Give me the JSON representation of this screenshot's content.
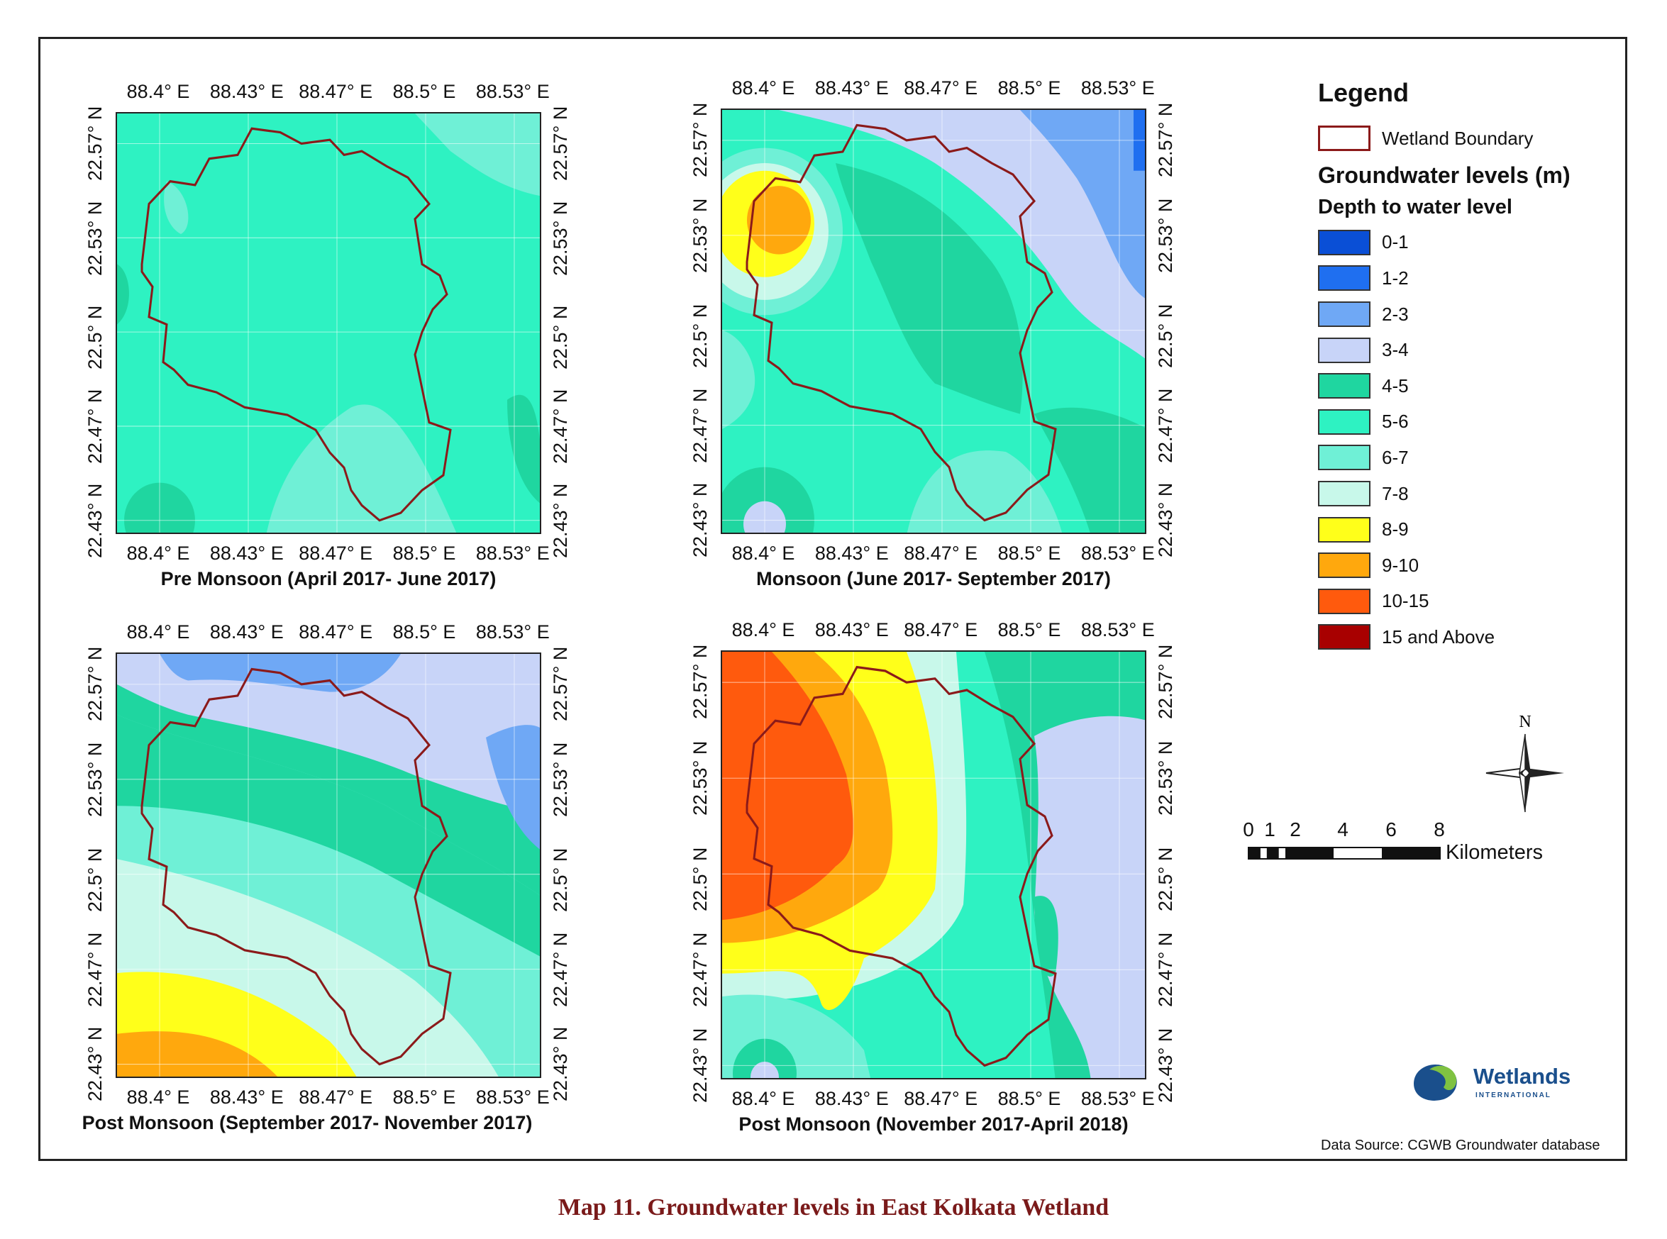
{
  "x_ticks": [
    "88.4° E",
    "88.43° E",
    "88.47° E",
    "88.5° E",
    "88.53° E"
  ],
  "y_ticks": [
    "22.57° N",
    "22.53° N",
    "22.5° N",
    "22.47° N",
    "22.43° N"
  ],
  "panels": [
    {
      "title": "Pre Monsoon (April 2017- June 2017)",
      "dominant_class": "5-6"
    },
    {
      "title": "Monsoon (June 2017- September 2017)",
      "dominant_class": "4-5"
    },
    {
      "title": "Post Monsoon (September 2017- November 2017)",
      "dominant_class": "3-4"
    },
    {
      "title": "Post Monsoon (November 2017-April 2018)",
      "dominant_class": "10-15"
    }
  ],
  "legend": {
    "title": "Legend",
    "boundary_label": "Wetland Boundary",
    "boundary_color": "#8b1a1a",
    "heading": "Groundwater levels (m)",
    "subheading": "Depth to water level",
    "classes": [
      {
        "label": "0-1",
        "color": "#0a4fd6"
      },
      {
        "label": "1-2",
        "color": "#1f6ff0"
      },
      {
        "label": "2-3",
        "color": "#6fa8f5"
      },
      {
        "label": "3-4",
        "color": "#c8d4f8"
      },
      {
        "label": "4-5",
        "color": "#1fd6a0"
      },
      {
        "label": "5-6",
        "color": "#2ef2c2"
      },
      {
        "label": "6-7",
        "color": "#6ff0d6"
      },
      {
        "label": "7-8",
        "color": "#c8f8ea"
      },
      {
        "label": "8-9",
        "color": "#ffff1a"
      },
      {
        "label": "9-10",
        "color": "#ffa80d"
      },
      {
        "label": "10-15",
        "color": "#ff5a0d"
      },
      {
        "label": "15 and Above",
        "color": "#a80000"
      }
    ]
  },
  "north_label": "N",
  "scale": {
    "ticks": [
      "0",
      "1",
      "2",
      "4",
      "6",
      "8"
    ],
    "unit": "Kilometers"
  },
  "logo": {
    "name": "Wetlands",
    "sub": "INTERNATIONAL"
  },
  "source": "Data Source: CGWB Groundwater database",
  "caption": "Map 11. Groundwater levels in East Kolkata Wetland"
}
